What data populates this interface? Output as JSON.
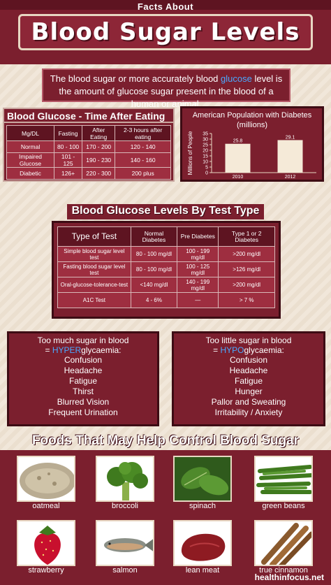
{
  "header": {
    "facts_label": "Facts About",
    "title": "Blood Sugar Levels"
  },
  "intro": {
    "part1": "The blood sugar or more accurately blood ",
    "highlight": "glucose",
    "part2": " level is the amount of glucose sugar present in the blood of a human or animal."
  },
  "glucose_table": {
    "title": "Blood Glucose - Time After Eating",
    "headers": [
      "Mg/DL",
      "Fasting",
      "After Eating",
      "2-3 hours after eating"
    ],
    "rows": [
      [
        "Normal",
        "80 - 100",
        "170 - 200",
        "120 - 140"
      ],
      [
        "Impaired Glucose",
        "101 - 125",
        "190 - 230",
        "140 - 160"
      ],
      [
        "Diabetic",
        "126+",
        "220 - 300",
        "200 plus"
      ]
    ]
  },
  "chart_data": {
    "type": "bar",
    "title": "American Population with Diabetes (millions)",
    "ylabel": "Millions of People",
    "categories": [
      "2010",
      "2012"
    ],
    "values": [
      25.8,
      29.1
    ],
    "ylim": [
      0,
      35
    ],
    "yticks": [
      0,
      5,
      10,
      15,
      20,
      25,
      30,
      35
    ],
    "bar_color": "#f5ead8"
  },
  "test_table": {
    "title": "Blood Glucose Levels By Test Type",
    "headers": [
      "Type of Test",
      "Normal Diabetes",
      "Pre Diabetes",
      "Type 1 or 2 Diabetes"
    ],
    "rows": [
      [
        "Simple blood sugar level test",
        "80 - 100 mg/dl",
        "100 - 199 mg/dl",
        ">200 mg/dl"
      ],
      [
        "Fasting blood sugar level test",
        "80 - 100 mg/dl",
        "100 - 125 mg/dl",
        ">126 mg/dl"
      ],
      [
        "Oral-glucose-tolerance-test",
        "<140 mg/dl",
        "140 - 199 mg/dl",
        ">200 mg/dl"
      ],
      [
        "A1C Test",
        "4 - 6%",
        "—",
        "> 7 %"
      ]
    ]
  },
  "hyper": {
    "line1": "Too much sugar in blood",
    "prefix": "= ",
    "highlight": "HYPER",
    "suffix": "glycaemia:",
    "items": [
      "Confusion",
      "Headache",
      "Fatigue",
      "Thirst",
      "Blurred Vision",
      "Frequent Urination"
    ]
  },
  "hypo": {
    "line1": "Too little sugar in blood",
    "prefix": "= ",
    "highlight": "HYPO",
    "suffix": "glycaemia:",
    "items": [
      "Confusion",
      "Headache",
      "Fatigue",
      "Hunger",
      "Pallor and Sweating",
      "Irritability / Anxiety"
    ]
  },
  "foods": {
    "title": "Foods That May Help Control Blood Sugar",
    "items": [
      "oatmeal",
      "broccoli",
      "spinach",
      "green beans",
      "strawberry",
      "salmon",
      "lean meat",
      "true cinnamon"
    ]
  },
  "footer": "healthinfocus.net",
  "colors": {
    "maroon": "#7b1f2e",
    "dark_maroon": "#3d0c14",
    "highlight_blue": "#4aa9ff"
  }
}
